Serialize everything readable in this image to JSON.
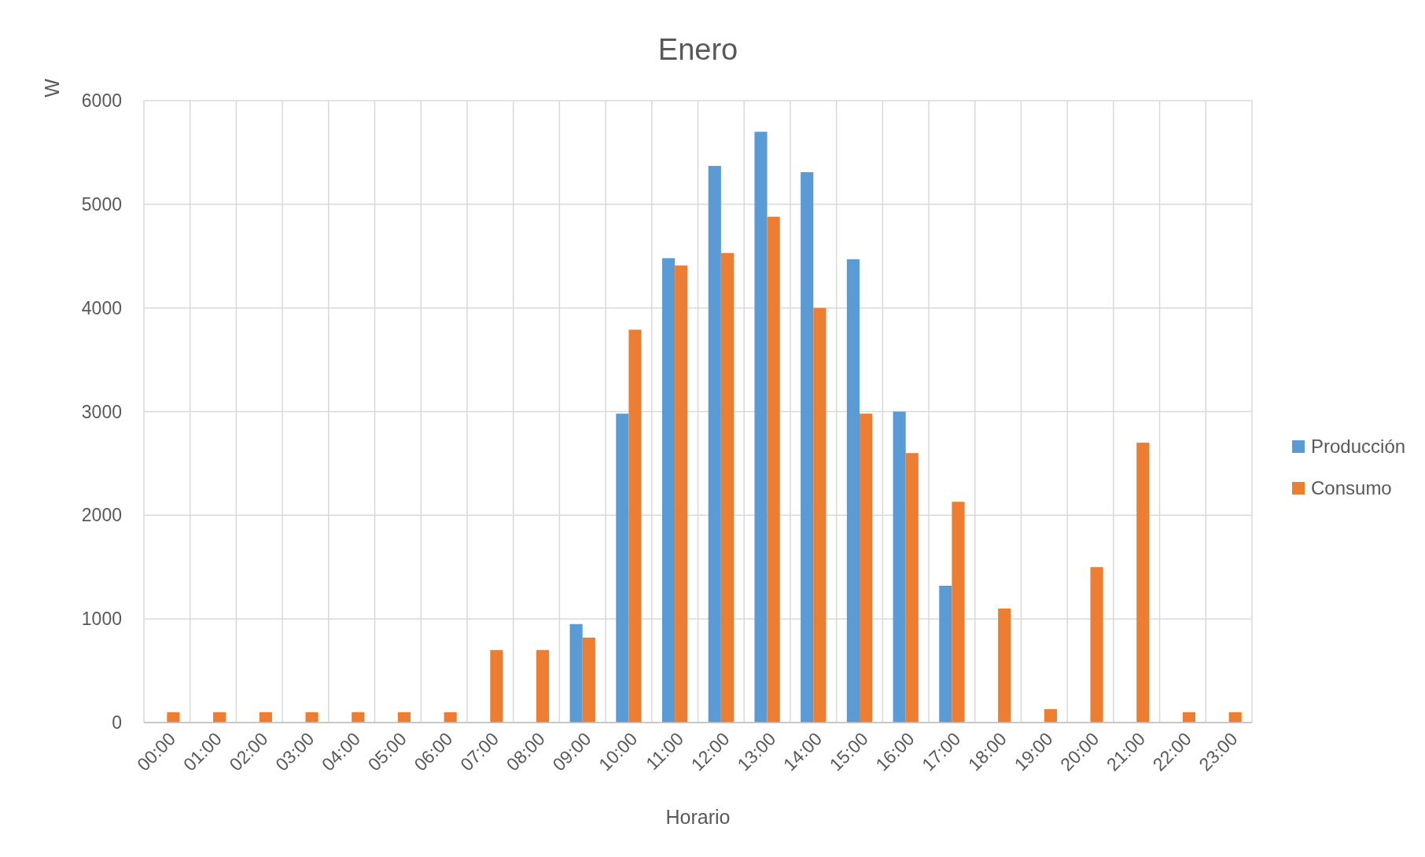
{
  "chart_data": {
    "type": "bar",
    "title": "Enero",
    "xlabel": "Horario",
    "ylabel": "W",
    "categories": [
      "00:00",
      "01:00",
      "02:00",
      "03:00",
      "04:00",
      "05:00",
      "06:00",
      "07:00",
      "08:00",
      "09:00",
      "10:00",
      "11:00",
      "12:00",
      "13:00",
      "14:00",
      "15:00",
      "16:00",
      "17:00",
      "18:00",
      "19:00",
      "20:00",
      "21:00",
      "22:00",
      "23:00"
    ],
    "series": [
      {
        "name": "Producción",
        "color": "#5b9bd5",
        "values": [
          0,
          0,
          0,
          0,
          0,
          0,
          0,
          0,
          0,
          950,
          2980,
          4480,
          5370,
          5700,
          5310,
          4470,
          3000,
          1320,
          0,
          0,
          0,
          0,
          0,
          0
        ]
      },
      {
        "name": "Consumo",
        "color": "#ed7d31",
        "values": [
          100,
          100,
          100,
          100,
          100,
          100,
          100,
          700,
          700,
          820,
          3790,
          4410,
          4530,
          4880,
          4000,
          2980,
          2600,
          2130,
          1100,
          130,
          1500,
          2700,
          100,
          100
        ]
      }
    ],
    "ylim": [
      0,
      6000
    ],
    "yticks": [
      0,
      1000,
      2000,
      3000,
      4000,
      5000,
      6000
    ],
    "grid": true,
    "legend": "right"
  }
}
